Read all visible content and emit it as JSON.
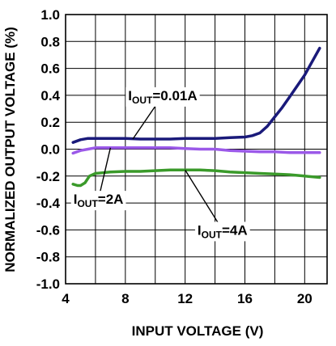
{
  "chart_data": {
    "type": "line",
    "title": "",
    "xlabel": "INPUT VOLTAGE (V)",
    "ylabel": "NORMALIZED OUTPUT VOLTAGE (%)",
    "xlim": [
      4,
      21.5
    ],
    "ylim": [
      -1.0,
      1.0
    ],
    "xticks": [
      4,
      8,
      12,
      16,
      20
    ],
    "xtick_labels": [
      "4",
      "8",
      "12",
      "16",
      "20"
    ],
    "yticks": [
      1.0,
      0.8,
      0.6,
      0.4,
      0.2,
      0.0,
      -0.2,
      -0.4,
      -0.6,
      -0.8,
      -1.0
    ],
    "ytick_labels": [
      "1.0",
      "0.8",
      "0.6",
      "0.4",
      "0.2",
      "0.0",
      "-0.2",
      "-0.4",
      "-0.6",
      "-0.8",
      "-1.0"
    ],
    "xgrid": [
      6,
      8,
      10,
      12,
      14,
      16,
      18,
      20
    ],
    "grid": true,
    "series": [
      {
        "name_main": "I",
        "name_sub": "OUT",
        "name_rest": "=0.01A",
        "color": "#1a1a7a",
        "points": [
          [
            4.5,
            0.05
          ],
          [
            5,
            0.07
          ],
          [
            5.5,
            0.08
          ],
          [
            6,
            0.08
          ],
          [
            7,
            0.08
          ],
          [
            8,
            0.08
          ],
          [
            9,
            0.075
          ],
          [
            10,
            0.075
          ],
          [
            11,
            0.075
          ],
          [
            12,
            0.08
          ],
          [
            13,
            0.08
          ],
          [
            14,
            0.08
          ],
          [
            15,
            0.085
          ],
          [
            16,
            0.09
          ],
          [
            16.5,
            0.1
          ],
          [
            17,
            0.12
          ],
          [
            17.5,
            0.17
          ],
          [
            18,
            0.24
          ],
          [
            18.5,
            0.31
          ],
          [
            19,
            0.39
          ],
          [
            19.5,
            0.47
          ],
          [
            20,
            0.55
          ],
          [
            20.5,
            0.65
          ],
          [
            21,
            0.75
          ]
        ]
      },
      {
        "name_main": "I",
        "name_sub": "OUT",
        "name_rest": "=2A",
        "color": "#9b59e8",
        "points": [
          [
            4.5,
            -0.03
          ],
          [
            5,
            -0.01
          ],
          [
            5.5,
            0.0
          ],
          [
            6,
            0.01
          ],
          [
            7,
            0.01
          ],
          [
            8,
            0.01
          ],
          [
            9,
            0.01
          ],
          [
            10,
            0.01
          ],
          [
            11,
            0.01
          ],
          [
            12,
            0.005
          ],
          [
            13,
            0.0
          ],
          [
            14,
            0.0
          ],
          [
            15,
            -0.01
          ],
          [
            16,
            -0.015
          ],
          [
            17,
            -0.02
          ],
          [
            18,
            -0.02
          ],
          [
            19,
            -0.025
          ],
          [
            20,
            -0.025
          ],
          [
            21,
            -0.025
          ]
        ]
      },
      {
        "name_main": "I",
        "name_sub": "OUT",
        "name_rest": "=4A",
        "color": "#3a9a2a",
        "points": [
          [
            4.5,
            -0.26
          ],
          [
            4.8,
            -0.27
          ],
          [
            5,
            -0.27
          ],
          [
            5.3,
            -0.25
          ],
          [
            5.6,
            -0.2
          ],
          [
            6,
            -0.18
          ],
          [
            7,
            -0.17
          ],
          [
            8,
            -0.165
          ],
          [
            9,
            -0.165
          ],
          [
            10,
            -0.16
          ],
          [
            11,
            -0.155
          ],
          [
            12,
            -0.155
          ],
          [
            13,
            -0.155
          ],
          [
            14,
            -0.16
          ],
          [
            15,
            -0.17
          ],
          [
            16,
            -0.175
          ],
          [
            17,
            -0.18
          ],
          [
            18,
            -0.185
          ],
          [
            19,
            -0.19
          ],
          [
            20,
            -0.2
          ],
          [
            21,
            -0.21
          ]
        ]
      }
    ],
    "annotations": [
      {
        "series": 0,
        "label_x": 10.5,
        "label_y": 0.4,
        "leader_to": [
          8.5,
          0.075
        ]
      },
      {
        "series": 1,
        "label_x": 6.2,
        "label_y": -0.37,
        "leader_to": [
          7,
          0.01
        ]
      },
      {
        "series": 2,
        "label_x": 14.5,
        "label_y": -0.6,
        "leader_to": [
          12,
          -0.155
        ]
      }
    ]
  }
}
